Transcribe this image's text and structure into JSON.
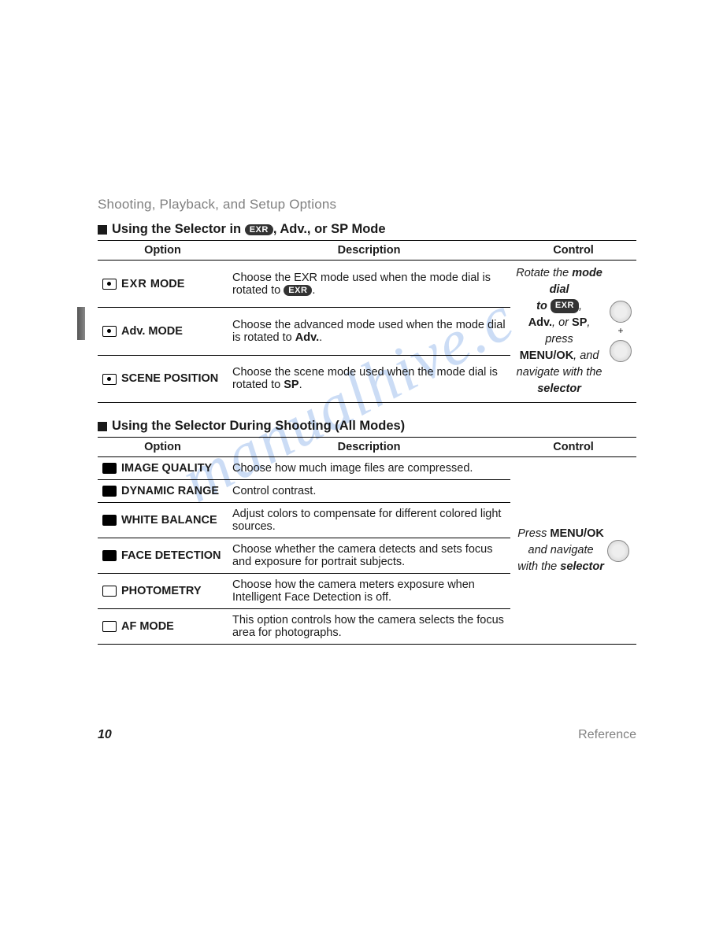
{
  "header": "Shooting, Playback, and Setup Options",
  "watermark": "manualhive.c",
  "page_number": "10",
  "page_section": "Reference",
  "section1": {
    "title_prefix": "Using the Selector in ",
    "title_suffix": ", Adv., or SP Mode",
    "exr_label": "EXR",
    "columns": {
      "option": "Option",
      "description": "Description",
      "control": "Control"
    },
    "rows": [
      {
        "option": "EXR MODE",
        "desc_pre": "Choose the EXR mode used when the mode dial is rotated to ",
        "desc_post": "."
      },
      {
        "option": "Adv. MODE",
        "desc_pre": "Choose the advanced mode used when the mode dial is rotated to ",
        "desc_bold": "Adv.",
        "desc_post": "."
      },
      {
        "option": "SCENE POSITION",
        "desc_pre": "Choose the scene mode used when the mode dial is rotated to ",
        "desc_bold": "SP",
        "desc_post": "."
      }
    ],
    "control": {
      "l1a": "Rotate the ",
      "l1b": "mode dial",
      "l1c": " to ",
      "l2a": "Adv.",
      "l2b": ", or ",
      "l2c": "SP",
      "l2d": ", press",
      "l3a": "MENU/OK",
      "l3b": ", and",
      "l4": "navigate with the",
      "l5": "selector"
    }
  },
  "section2": {
    "title": "Using the Selector During Shooting (All Modes)",
    "columns": {
      "option": "Option",
      "description": "Description",
      "control": "Control"
    },
    "rows": [
      {
        "option": "IMAGE QUALITY",
        "description": "Choose how much image files are compressed."
      },
      {
        "option": "DYNAMIC RANGE",
        "description": "Control contrast."
      },
      {
        "option": "WHITE BALANCE",
        "description": "Adjust colors to compensate for different colored light sources."
      },
      {
        "option": "FACE DETECTION",
        "description": "Choose whether the camera detects and sets focus and exposure for portrait subjects."
      },
      {
        "option": "PHOTOMETRY",
        "description": "Choose how the camera meters exposure when Intelligent Face Detection is off."
      },
      {
        "option": "AF MODE",
        "description": "This option controls how the camera selects the focus area for photographs."
      }
    ],
    "control": {
      "l1a": "Press ",
      "l1b": "MENU/OK",
      "l2": "and navigate",
      "l3a": "with the ",
      "l3b": "selector"
    }
  }
}
